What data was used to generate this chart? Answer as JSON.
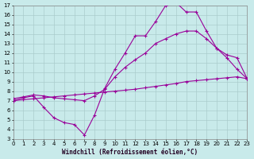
{
  "xlabel": "Windchill (Refroidissement éolien,°C)",
  "bg_color": "#c8eaea",
  "grid_color": "#aacccc",
  "line_color": "#990099",
  "xlim": [
    0,
    23
  ],
  "ylim": [
    3,
    17
  ],
  "xticks": [
    0,
    1,
    2,
    3,
    4,
    5,
    6,
    7,
    8,
    9,
    10,
    11,
    12,
    13,
    14,
    15,
    16,
    17,
    18,
    19,
    20,
    21,
    22,
    23
  ],
  "yticks": [
    3,
    4,
    5,
    6,
    7,
    8,
    9,
    10,
    11,
    12,
    13,
    14,
    15,
    16,
    17
  ],
  "c1x": [
    0,
    1,
    2,
    3,
    4,
    5,
    6,
    7,
    8,
    9,
    10,
    11,
    12,
    13,
    14,
    15,
    16,
    17,
    18,
    19,
    20,
    21,
    22,
    23
  ],
  "c1y": [
    7.0,
    7.3,
    7.5,
    6.3,
    5.2,
    4.7,
    4.5,
    3.4,
    5.5,
    8.3,
    10.3,
    12.0,
    13.8,
    13.8,
    15.3,
    17.0,
    17.3,
    16.3,
    16.3,
    14.3,
    12.5,
    11.5,
    10.3,
    9.3
  ],
  "c2x": [
    0,
    1,
    2,
    3,
    4,
    5,
    6,
    7,
    8,
    9,
    10,
    11,
    12,
    13,
    14,
    15,
    16,
    17,
    18,
    19,
    20,
    21,
    22,
    23
  ],
  "c2y": [
    7.2,
    7.4,
    7.6,
    7.5,
    7.3,
    7.2,
    7.1,
    7.0,
    7.5,
    8.2,
    9.5,
    10.5,
    11.3,
    12.0,
    13.0,
    13.5,
    14.0,
    14.3,
    14.3,
    13.5,
    12.5,
    11.8,
    11.5,
    9.3
  ],
  "c3x": [
    0,
    1,
    2,
    3,
    4,
    5,
    6,
    7,
    8,
    9,
    10,
    11,
    12,
    13,
    14,
    15,
    16,
    17,
    18,
    19,
    20,
    21,
    22,
    23
  ],
  "c3y": [
    7.0,
    7.1,
    7.2,
    7.3,
    7.4,
    7.5,
    7.6,
    7.7,
    7.8,
    7.9,
    8.0,
    8.1,
    8.2,
    8.35,
    8.5,
    8.65,
    8.8,
    9.0,
    9.1,
    9.2,
    9.3,
    9.4,
    9.5,
    9.3
  ]
}
